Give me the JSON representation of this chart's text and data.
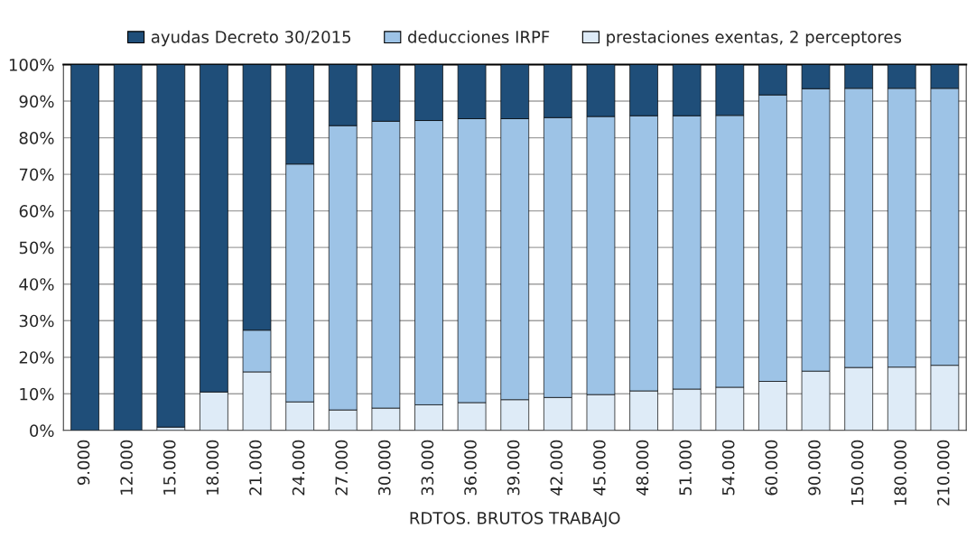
{
  "chart_data": {
    "type": "bar",
    "stacked": true,
    "xlabel": "RDTOS. BRUTOS TRABAJO",
    "categories": [
      "9.000",
      "12.000",
      "15.000",
      "18.000",
      "21.000",
      "24.000",
      "27.000",
      "30.000",
      "33.000",
      "36.000",
      "39.000",
      "42.000",
      "45.000",
      "48.000",
      "51.000",
      "54.000",
      "60.000",
      "90.000",
      "150.000",
      "180.000",
      "210.000"
    ],
    "series": [
      {
        "name": "prestaciones exentas, 2 perceptores",
        "color": "#deebf7",
        "values": [
          0,
          0,
          0.9,
          10.5,
          16,
          7.8,
          5.6,
          6.1,
          7,
          7.6,
          8.4,
          9,
          9.8,
          10.8,
          11.3,
          11.8,
          13.4,
          16.2,
          17.2,
          17.3,
          17.8
        ]
      },
      {
        "name": "deducciones IRPF",
        "color": "#9dc3e6",
        "values": [
          0,
          0,
          0,
          0,
          11.4,
          65,
          77.7,
          78.4,
          77.7,
          77.6,
          76.8,
          76.5,
          76,
          75.2,
          74.7,
          74.3,
          78.3,
          77.2,
          76.3,
          76.2,
          75.7
        ]
      },
      {
        "name": "ayudas Decreto 30/2015",
        "color": "#1f4e79",
        "values": [
          100,
          100,
          99.1,
          89.5,
          72.6,
          27.2,
          16.7,
          15.5,
          15.3,
          14.8,
          14.8,
          14.5,
          14.2,
          14,
          14,
          13.9,
          8.3,
          6.6,
          6.5,
          6.5,
          6.5
        ]
      }
    ],
    "ylim": [
      0,
      100
    ],
    "yticks": [
      {
        "value": 0,
        "label": "0%"
      },
      {
        "value": 10,
        "label": "10%"
      },
      {
        "value": 20,
        "label": "20%"
      },
      {
        "value": 30,
        "label": "30%"
      },
      {
        "value": 40,
        "label": "40%"
      },
      {
        "value": 50,
        "label": "50%"
      },
      {
        "value": 60,
        "label": "60%"
      },
      {
        "value": 70,
        "label": "70%"
      },
      {
        "value": 80,
        "label": "80%"
      },
      {
        "value": 90,
        "label": "90%"
      },
      {
        "value": 100,
        "label": "100%"
      }
    ],
    "grid": "y",
    "legend": "top"
  }
}
